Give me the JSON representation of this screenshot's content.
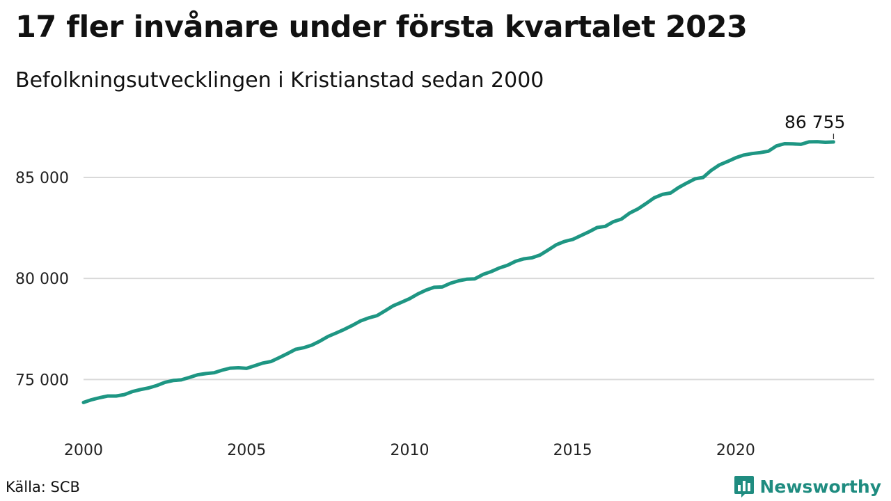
{
  "header": {
    "title": "17 fler invånare under första kvartalet 2023",
    "subtitle": "Befolkningsutvecklingen i Kristianstad sedan 2000"
  },
  "footer": {
    "source": "Källa: SCB",
    "brand": "Newsworthy",
    "brand_icon": "bar-chart-speech-bubble-icon"
  },
  "colors": {
    "line": "#1e9683",
    "grid": "#d9d9d9",
    "brand": "#1f8c80"
  },
  "chart_data": {
    "type": "line",
    "title": "17 fler invånare under första kvartalet 2023",
    "subtitle": "Befolkningsutvecklingen i Kristianstad sedan 2000",
    "xlabel": "",
    "ylabel": "",
    "x_ticks": [
      2000,
      2005,
      2010,
      2015,
      2020
    ],
    "y_ticks": [
      75000,
      80000,
      85000
    ],
    "y_tick_labels": [
      "75 000",
      "80 000",
      "85 000"
    ],
    "xlim": [
      2000,
      2024.25
    ],
    "ylim": [
      72600,
      88100
    ],
    "grid": true,
    "legend": "none",
    "end_label": "86 755",
    "x": [
      2000.0,
      2000.25,
      2000.5,
      2000.75,
      2001.0,
      2001.25,
      2001.5,
      2001.75,
      2002.0,
      2002.25,
      2002.5,
      2002.75,
      2003.0,
      2003.25,
      2003.5,
      2003.75,
      2004.0,
      2004.25,
      2004.5,
      2004.75,
      2005.0,
      2005.25,
      2005.5,
      2005.75,
      2006.0,
      2006.25,
      2006.5,
      2006.75,
      2007.0,
      2007.25,
      2007.5,
      2007.75,
      2008.0,
      2008.25,
      2008.5,
      2008.75,
      2009.0,
      2009.25,
      2009.5,
      2009.75,
      2010.0,
      2010.25,
      2010.5,
      2010.75,
      2011.0,
      2011.25,
      2011.5,
      2011.75,
      2012.0,
      2012.25,
      2012.5,
      2012.75,
      2013.0,
      2013.25,
      2013.5,
      2013.75,
      2014.0,
      2014.25,
      2014.5,
      2014.75,
      2015.0,
      2015.25,
      2015.5,
      2015.75,
      2016.0,
      2016.25,
      2016.5,
      2016.75,
      2017.0,
      2017.25,
      2017.5,
      2017.75,
      2018.0,
      2018.25,
      2018.5,
      2018.75,
      2019.0,
      2019.25,
      2019.5,
      2019.75,
      2020.0,
      2020.25,
      2020.5,
      2020.75,
      2021.0,
      2021.25,
      2021.5,
      2021.75,
      2022.0,
      2022.25,
      2022.5,
      2022.75,
      2023.0
    ],
    "series": [
      {
        "values": [
          73860,
          74000,
          74100,
          74180,
          74180,
          74250,
          74400,
          74500,
          74580,
          74700,
          74860,
          74950,
          74980,
          75100,
          75230,
          75290,
          75330,
          75460,
          75560,
          75580,
          75550,
          75680,
          75810,
          75890,
          76080,
          76280,
          76490,
          76570,
          76700,
          76900,
          77130,
          77300,
          77480,
          77680,
          77900,
          78050,
          78160,
          78400,
          78650,
          78820,
          79000,
          79230,
          79420,
          79560,
          79580,
          79760,
          79880,
          79960,
          79980,
          80200,
          80340,
          80520,
          80650,
          80850,
          80970,
          81020,
          81160,
          81410,
          81670,
          81830,
          81930,
          82120,
          82310,
          82520,
          82580,
          82810,
          82940,
          83240,
          83440,
          83710,
          83990,
          84160,
          84230,
          84500,
          84720,
          84930,
          85000,
          85350,
          85620,
          85790,
          85970,
          86110,
          86180,
          86230,
          86300,
          86560,
          86670,
          86660,
          86640,
          86760,
          86770,
          86740,
          86755
        ]
      }
    ]
  }
}
